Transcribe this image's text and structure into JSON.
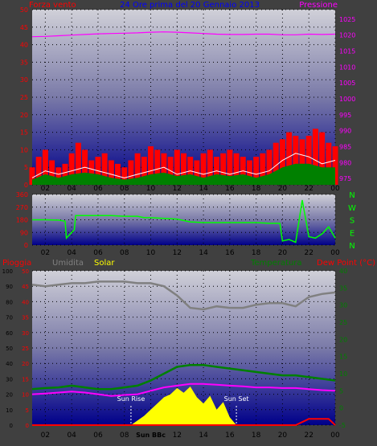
{
  "header": {
    "left_label": "Forza vento",
    "center_label": "24 Ore prima del 20 Gennaio 2013",
    "right_label": "Pressione"
  },
  "footer": {
    "left": {
      "c1": "Pioggia",
      "c2": "Umidita",
      "c3": "Solar"
    },
    "right": {
      "c1": "Temperatura",
      "c2": "Dew Point (°C)"
    }
  },
  "colors": {
    "background": "#404040",
    "wind": "#ff0000",
    "gust": "#ffffff",
    "wind_avg": "#008000",
    "pressure": "#ff00ff",
    "direction": "#00ff00",
    "humidity": "#808080",
    "temperature": "#008000",
    "dew_point": "#ff00ff",
    "solar": "#ffff00",
    "rain": "#ff0000",
    "legend_red": "#ff0000",
    "legend_gray": "#808080",
    "legend_yellow": "#ffff00",
    "legend_green": "#008000",
    "legend_blue": "#0000ff",
    "legend_magenta": "#ff00ff"
  },
  "chart_data": [
    {
      "type": "line",
      "name": "wind_pressure",
      "x_ticks": [
        "02",
        "04",
        "06",
        "08",
        "10",
        "12",
        "14",
        "16",
        "18",
        "20",
        "22",
        "00"
      ],
      "y_left_ticks": [
        0,
        5,
        10,
        15,
        20,
        25,
        30,
        35,
        40,
        45,
        50
      ],
      "y_right_ticks": [
        975,
        980,
        985,
        990,
        995,
        1000,
        1005,
        1010,
        1015,
        1020,
        1025
      ],
      "ylim_left": [
        0,
        50
      ],
      "ylim_right": [
        973,
        1028
      ],
      "xlim": [
        1,
        24
      ],
      "series": [
        {
          "name": "Forza vento",
          "color_key": "wind",
          "x": [
            1,
            1.5,
            2,
            2.5,
            3,
            3.5,
            4,
            4.5,
            5,
            5.5,
            6,
            6.5,
            7,
            7.5,
            8,
            8.5,
            9,
            9.5,
            10,
            10.5,
            11,
            11.5,
            12,
            12.5,
            13,
            13.5,
            14,
            14.5,
            15,
            15.5,
            16,
            16.5,
            17,
            17.5,
            18,
            18.5,
            19,
            19.5,
            20,
            20.5,
            21,
            21.5,
            22,
            22.5,
            23,
            23.5,
            24
          ],
          "values": [
            5,
            8,
            10,
            7,
            5,
            6,
            9,
            12,
            10,
            7,
            8,
            9,
            7,
            6,
            5,
            7,
            9,
            8,
            11,
            10,
            9,
            8,
            10,
            9,
            8,
            7,
            9,
            10,
            8,
            9,
            10,
            9,
            8,
            7,
            8,
            9,
            10,
            12,
            13,
            15,
            14,
            13,
            14,
            16,
            15,
            12,
            11
          ]
        },
        {
          "name": "Raffica",
          "color_key": "gust",
          "x": [
            1,
            2,
            3,
            4,
            5,
            6,
            7,
            8,
            9,
            10,
            11,
            12,
            13,
            14,
            15,
            16,
            17,
            18,
            19,
            20,
            21,
            22,
            23,
            24
          ],
          "values": [
            2,
            4,
            3,
            4,
            5,
            4,
            3,
            2,
            3,
            4,
            5,
            3,
            4,
            3,
            4,
            3,
            4,
            3,
            4,
            7,
            9,
            8,
            6,
            7
          ]
        },
        {
          "name": "Vento medio",
          "color_key": "wind_avg",
          "x": [
            1,
            2,
            3,
            4,
            5,
            6,
            7,
            8,
            9,
            10,
            11,
            12,
            13,
            14,
            15,
            16,
            17,
            18,
            19,
            20,
            21,
            22,
            23,
            24
          ],
          "values": [
            1.5,
            3,
            2,
            3,
            3.5,
            3,
            2,
            1.5,
            2,
            3,
            3.5,
            2.5,
            3,
            2,
            3,
            2.5,
            3,
            2,
            3,
            5,
            6,
            6,
            5,
            5
          ]
        },
        {
          "name": "Pressione",
          "color_key": "pressure",
          "axis": "right",
          "x": [
            1,
            2,
            3,
            4,
            5,
            6,
            7,
            8,
            9,
            10,
            11,
            12,
            13,
            14,
            15,
            16,
            17,
            18,
            19,
            20,
            21,
            22,
            23,
            24
          ],
          "values": [
            1019.5,
            1019.6,
            1019.8,
            1020,
            1020.2,
            1020.4,
            1020.5,
            1020.6,
            1020.7,
            1020.9,
            1021.0,
            1020.9,
            1020.7,
            1020.5,
            1020.3,
            1020.2,
            1020.2,
            1020.3,
            1020.3,
            1020.1,
            1020.1,
            1020.3,
            1020.2,
            1020.3
          ]
        }
      ]
    },
    {
      "type": "line",
      "name": "direction",
      "x_ticks": [
        "02",
        "04",
        "06",
        "08",
        "10",
        "12",
        "14",
        "16",
        "18",
        "20",
        "22",
        "00"
      ],
      "y_ticks": [
        0,
        90,
        180,
        270,
        360
      ],
      "right_labels": [
        "N",
        "W",
        "S",
        "E",
        "N"
      ],
      "ylim": [
        0,
        360
      ],
      "xlim": [
        1,
        24
      ],
      "series": [
        {
          "name": "Direzione",
          "color_key": "direction",
          "x": [
            1,
            2,
            3,
            3.5,
            3.6,
            4.2,
            4.3,
            5,
            6,
            7,
            8,
            9,
            9.5,
            10,
            11,
            12,
            13,
            14,
            15,
            16,
            17,
            18,
            19,
            19.8,
            20,
            20.5,
            21,
            21.5,
            22,
            22.5,
            23,
            23.5,
            24
          ],
          "values": [
            180,
            180,
            178,
            170,
            50,
            110,
            210,
            210,
            210,
            210,
            205,
            205,
            195,
            195,
            190,
            185,
            165,
            160,
            160,
            160,
            160,
            160,
            155,
            155,
            30,
            40,
            20,
            320,
            60,
            50,
            80,
            130,
            50
          ]
        }
      ]
    },
    {
      "type": "line",
      "name": "weather",
      "x_ticks": [
        "02",
        "04",
        "06",
        "08",
        "Sun BBc",
        "12",
        "14",
        "16",
        "18",
        "20",
        "22",
        "00"
      ],
      "y_left_ticks": [
        0,
        10,
        20,
        30,
        40,
        50,
        60,
        70,
        80,
        90,
        100
      ],
      "y_left2_ticks": [
        0,
        5,
        10,
        15,
        20,
        25,
        30,
        35,
        40,
        45,
        50
      ],
      "y_right_ticks": [
        -5,
        0,
        5,
        10,
        15,
        20,
        25,
        30,
        35,
        40
      ],
      "ylim_left": [
        0,
        100
      ],
      "ylim_right": [
        -5,
        40
      ],
      "xlim": [
        1,
        24
      ],
      "annotations": [
        {
          "text": "Sun Rise",
          "x": 8.5
        },
        {
          "text": "Sun Set",
          "x": 16.5
        }
      ],
      "series": [
        {
          "name": "Umidita",
          "color_key": "humidity",
          "x": [
            1,
            2,
            3,
            4,
            5,
            6,
            7,
            8,
            9,
            10,
            11,
            12,
            13,
            14,
            15,
            16,
            17,
            18,
            19,
            20,
            21,
            22,
            23,
            24
          ],
          "values": [
            91,
            90,
            91,
            92,
            92,
            93,
            93,
            93,
            92,
            92,
            90,
            84,
            76,
            75,
            77,
            76,
            76,
            78,
            79,
            79,
            77,
            83,
            85,
            86
          ]
        },
        {
          "name": "Temperatura",
          "color_key": "temperature",
          "axis": "right",
          "x": [
            1,
            2,
            3,
            4,
            5,
            6,
            7,
            8,
            9,
            10,
            11,
            12,
            13,
            14,
            15,
            16,
            17,
            18,
            19,
            20,
            21,
            22,
            23,
            24
          ],
          "values": [
            5.5,
            5.8,
            6.0,
            6.5,
            6.0,
            5.5,
            5.5,
            6.0,
            6.5,
            8.0,
            10.0,
            12.0,
            12.5,
            12.5,
            12.0,
            11.5,
            11.0,
            10.5,
            10.0,
            9.5,
            9.5,
            9.0,
            8.5,
            8.0
          ]
        },
        {
          "name": "Dew Point",
          "color_key": "dew_point",
          "axis": "right",
          "x": [
            1,
            2,
            3,
            4,
            5,
            6,
            7,
            8,
            9,
            10,
            11,
            12,
            13,
            14,
            15,
            16,
            17,
            18,
            19,
            20,
            21,
            22,
            23,
            24
          ],
          "values": [
            4.0,
            4.2,
            4.5,
            4.8,
            4.5,
            4.0,
            3.5,
            3.8,
            4.0,
            5.0,
            6.0,
            6.5,
            7.0,
            7.0,
            6.8,
            6.5,
            6.3,
            6.0,
            6.0,
            5.8,
            5.8,
            5.5,
            5.2,
            5.0
          ]
        },
        {
          "name": "Solar",
          "color_key": "solar",
          "x": [
            8.5,
            9,
            9.5,
            10,
            10.5,
            11,
            11.5,
            12,
            12.5,
            13,
            13.5,
            14,
            14.5,
            15,
            15.5,
            16,
            16.5
          ],
          "values": [
            0,
            3,
            6,
            10,
            14,
            18,
            20,
            24,
            21,
            25,
            18,
            14,
            19,
            10,
            15,
            5,
            0
          ]
        },
        {
          "name": "Pioggia",
          "color_key": "rain",
          "x": [
            1,
            21,
            21.5,
            22,
            23,
            23.5,
            24
          ],
          "values": [
            0,
            0,
            2,
            4,
            4,
            4,
            0
          ]
        }
      ]
    }
  ]
}
